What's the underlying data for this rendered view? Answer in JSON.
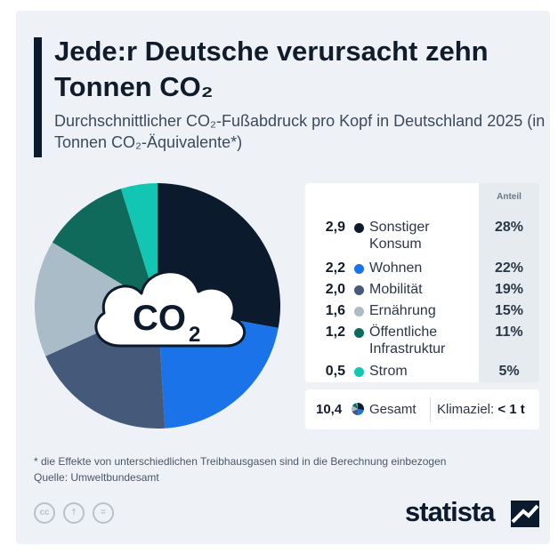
{
  "title": "Jede:r Deutsche verursacht zehn Tonnen CO₂",
  "subtitle": "Durchschnittlicher CO₂-Fußabdruck pro Kopf in Deutschland 2025 (in Tonnen CO₂-Äquivalente*)",
  "pie_center_label": "CO",
  "pie_center_sub": "2",
  "table": {
    "share_header": "Anteil"
  },
  "chart_data": {
    "type": "pie",
    "unit": "Tonnen CO₂-Äquivalente",
    "categories": [
      "Sonstiger Konsum",
      "Wohnen",
      "Mobilität",
      "Ernährung",
      "Öffentliche Infrastruktur",
      "Strom"
    ],
    "values": [
      2.9,
      2.2,
      2.0,
      1.6,
      1.2,
      0.5
    ],
    "value_labels": [
      "2,9",
      "2,2",
      "2,0",
      "1,6",
      "1,2",
      "0,5"
    ],
    "shares": [
      28,
      22,
      19,
      15,
      11,
      5
    ],
    "share_labels": [
      "28%",
      "22%",
      "19%",
      "15%",
      "11%",
      "5%"
    ],
    "colors": [
      "#0c1a2e",
      "#1a73e8",
      "#455a7a",
      "#a9bcc8",
      "#0f6a5c",
      "#13c6b3"
    ],
    "legend_position": "right",
    "total_value": "10,4",
    "total_label": "Gesamt"
  },
  "goal": {
    "label": "Klimaziel:",
    "value": "< 1 t"
  },
  "footnote": "* die Effekte von unterschiedlichen Treibhausgasen sind in die Berechnung einbezogen",
  "source": "Quelle: Umweltbundesamt",
  "license_icons": [
    "cc-icon",
    "person-icon",
    "equals-icon"
  ],
  "license_glyphs": [
    "cc",
    "†",
    "="
  ],
  "brand": {
    "name": "statista"
  }
}
